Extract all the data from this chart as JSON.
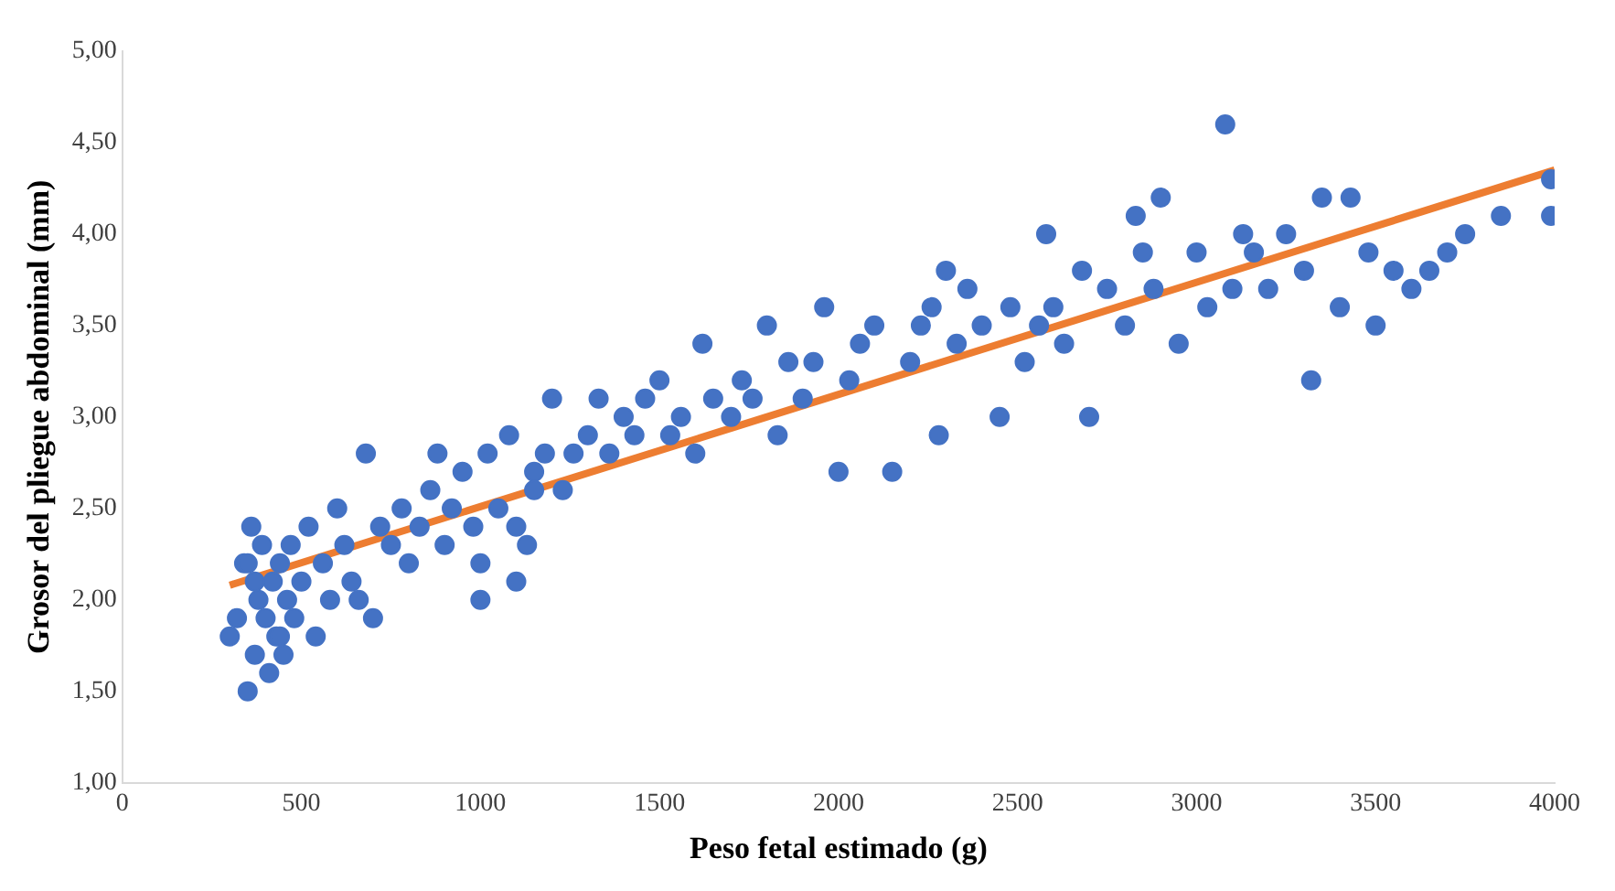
{
  "chart_data": {
    "type": "scatter",
    "xlabel": "Peso fetal estimado (g)",
    "ylabel": "Grosor del pliegue abdominal (mm)",
    "xlim": [
      0,
      4000
    ],
    "xticks": [
      0,
      500,
      1000,
      1500,
      2000,
      2500,
      3000,
      3500,
      4000
    ],
    "ylim": [
      1,
      5
    ],
    "yticks": [
      {
        "value": 1,
        "label": "1,00"
      },
      {
        "value": 1.5,
        "label": "1,50"
      },
      {
        "value": 2,
        "label": "2,00"
      },
      {
        "value": 2.5,
        "label": "2,50"
      },
      {
        "value": 3,
        "label": "3,00"
      },
      {
        "value": 3.5,
        "label": "3,50"
      },
      {
        "value": 4,
        "label": "4,00"
      },
      {
        "value": 4.5,
        "label": "4,50"
      },
      {
        "value": 5,
        "label": "5,00"
      }
    ],
    "grid": false,
    "legend": false,
    "series": [
      {
        "marker": "circle",
        "color": "#4472c4",
        "x": [
          300,
          320,
          340,
          350,
          360,
          370,
          380,
          390,
          400,
          410,
          420,
          430,
          440,
          450,
          460,
          470,
          480,
          500,
          520,
          540,
          560,
          580,
          600,
          620,
          640,
          660,
          680,
          700,
          720,
          750,
          780,
          800,
          830,
          860,
          880,
          900,
          920,
          950,
          980,
          1000,
          1020,
          1050,
          1080,
          1100,
          1130,
          1150,
          1180,
          1200,
          1230,
          1260,
          1300,
          1330,
          1360,
          1400,
          1430,
          1460,
          1500,
          1530,
          1560,
          1600,
          1620,
          1650,
          1700,
          1730,
          1760,
          1800,
          1830,
          1860,
          1900,
          1930,
          1960,
          2000,
          2030,
          2060,
          2100,
          2150,
          2200,
          2230,
          2260,
          2280,
          2300,
          2330,
          2360,
          2400,
          2450,
          2480,
          2520,
          2560,
          2580,
          2600,
          2630,
          2680,
          2700,
          2750,
          2800,
          2830,
          2850,
          2880,
          2900,
          2950,
          3000,
          3030,
          3080,
          3100,
          3130,
          3160,
          3200,
          3250,
          3300,
          3320,
          3350,
          3400,
          3430,
          3480,
          3500,
          3550,
          3600,
          3650,
          3700,
          3750,
          3850,
          3990,
          3990,
          350,
          370,
          440,
          1000,
          1100,
          1150
        ],
        "values": [
          1.8,
          1.9,
          2.2,
          1.5,
          2.4,
          1.7,
          2.0,
          2.3,
          1.9,
          1.6,
          2.1,
          1.8,
          2.2,
          1.7,
          2.0,
          2.3,
          1.9,
          2.1,
          2.4,
          1.8,
          2.2,
          2.0,
          2.5,
          2.3,
          2.1,
          2.0,
          2.8,
          1.9,
          2.4,
          2.3,
          2.5,
          2.2,
          2.4,
          2.6,
          2.8,
          2.3,
          2.5,
          2.7,
          2.4,
          2.0,
          2.8,
          2.5,
          2.9,
          2.1,
          2.3,
          2.7,
          2.8,
          3.1,
          2.6,
          2.8,
          2.9,
          3.1,
          2.8,
          3.0,
          2.9,
          3.1,
          3.2,
          2.9,
          3.0,
          2.8,
          3.4,
          3.1,
          3.0,
          3.2,
          3.1,
          3.5,
          2.9,
          3.3,
          3.1,
          3.3,
          3.6,
          2.7,
          3.2,
          3.4,
          3.5,
          2.7,
          3.3,
          3.5,
          3.6,
          2.9,
          3.8,
          3.4,
          3.7,
          3.5,
          3.0,
          3.6,
          3.3,
          3.5,
          4.0,
          3.6,
          3.4,
          3.8,
          3.0,
          3.7,
          3.5,
          4.1,
          3.9,
          3.7,
          4.2,
          3.4,
          3.9,
          3.6,
          4.6,
          3.7,
          4.0,
          3.9,
          3.7,
          4.0,
          3.8,
          3.2,
          4.2,
          3.6,
          4.2,
          3.9,
          3.5,
          3.8,
          3.7,
          3.8,
          3.9,
          4.0,
          4.1,
          4.3,
          4.1,
          2.2,
          2.1,
          1.8,
          2.2,
          2.4,
          2.6
        ]
      },
      {
        "type": "line",
        "marker": "none",
        "color": "#ed7d31",
        "x": [
          300,
          4000
        ],
        "values": [
          2.08,
          4.35
        ]
      }
    ]
  }
}
